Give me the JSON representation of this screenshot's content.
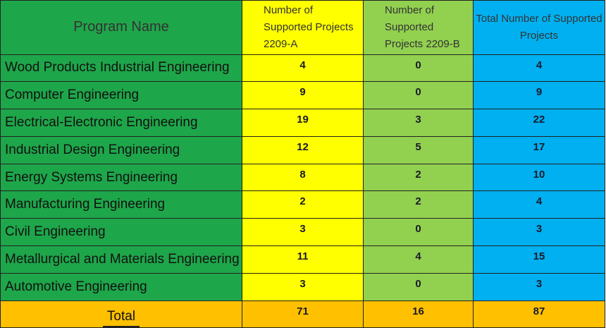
{
  "headers": {
    "program_name": "Program Name",
    "col_a": "Number of Supported Projects 2209-A",
    "col_b": "Number of Supported Projects 2209-B",
    "col_total": "Total Number of Supported Projects"
  },
  "rows": [
    {
      "name": "Wood Products Industrial Engineering",
      "a": "4",
      "b": "0",
      "total": "4"
    },
    {
      "name": "Computer Engineering",
      "a": "9",
      "b": "0",
      "total": "9"
    },
    {
      "name": "Electrical-Electronic Engineering",
      "a": "19",
      "b": "3",
      "total": "22"
    },
    {
      "name": "Industrial Design Engineering",
      "a": "12",
      "b": "5",
      "total": "17"
    },
    {
      "name": "Energy Systems Engineering",
      "a": "8",
      "b": "2",
      "total": "10"
    },
    {
      "name": "Manufacturing Engineering",
      "a": "2",
      "b": "2",
      "total": "4"
    },
    {
      "name": "Civil Engineering",
      "a": "3",
      "b": "0",
      "total": "3"
    },
    {
      "name": "Metallurgical and Materials Engineering",
      "a": "11",
      "b": "4",
      "total": "15"
    },
    {
      "name": "Automotive Engineering",
      "a": "3",
      "b": "0",
      "total": "3"
    }
  ],
  "total": {
    "label": "Total",
    "a": "71",
    "b": "16",
    "total": "87"
  },
  "colors": {
    "program_column": "#1ea64a",
    "col_a": "#ffff00",
    "col_b": "#92d050",
    "col_total": "#00b0f0",
    "total_row": "#ffc000"
  }
}
